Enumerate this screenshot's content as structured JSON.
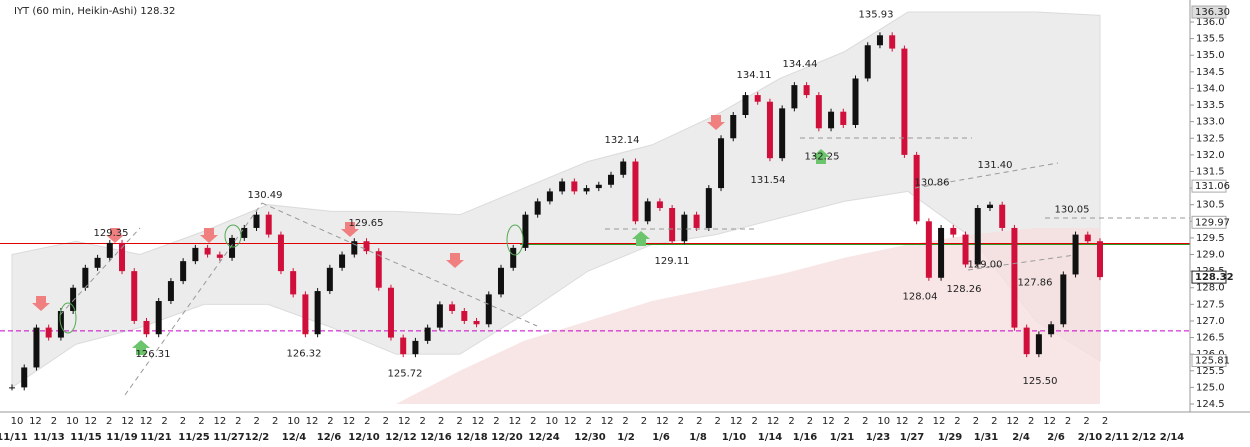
{
  "chart_data": {
    "type": "candlestick",
    "title": "IYT (60 min, Heikin-Ashi) 128.32",
    "series": [
      {
        "name": "IYT",
        "up_color": "#111111",
        "down_color": "#d0103a",
        "values": [
          125.0,
          125.6,
          126.8,
          126.5,
          127.3,
          128.0,
          128.6,
          128.9,
          129.35,
          128.5,
          127.0,
          126.6,
          127.6,
          128.2,
          128.8,
          129.2,
          129.0,
          128.9,
          129.5,
          129.8,
          130.2,
          129.6,
          128.5,
          127.8,
          126.6,
          127.9,
          128.6,
          129.0,
          129.4,
          129.1,
          128.0,
          126.5,
          126.0,
          126.4,
          126.8,
          127.5,
          127.3,
          127.0,
          126.9,
          127.8,
          128.6,
          129.2,
          130.2,
          130.6,
          130.9,
          131.2,
          130.9,
          131.0,
          131.1,
          131.4,
          131.8,
          130.0,
          130.6,
          130.4,
          129.4,
          130.2,
          129.8,
          131.0,
          132.5,
          133.2,
          133.8,
          133.6,
          131.9,
          133.4,
          134.1,
          133.8,
          132.8,
          133.3,
          132.9,
          134.3,
          135.3,
          135.6,
          135.2,
          132.0,
          130.0,
          128.3,
          129.8,
          129.6,
          128.7,
          130.4,
          130.5,
          129.8,
          126.8,
          126.0,
          126.6,
          126.9,
          128.4,
          129.6,
          129.4,
          128.32
        ]
      }
    ],
    "band": {
      "upper": [
        129.0,
        129.4,
        129.0,
        129.7,
        130.5,
        130.3,
        130.3,
        130.2,
        131.0,
        131.8,
        132.3,
        133.2,
        134.3,
        135.1,
        136.3,
        136.3,
        136.3,
        136.2
      ],
      "lower": [
        125.0,
        126.3,
        126.8,
        127.5,
        127.5,
        126.8,
        126.0,
        126.0,
        127.2,
        128.5,
        129.3,
        129.6,
        130.1,
        130.6,
        130.9,
        129.5,
        127.0,
        125.8
      ],
      "color": "#e4e4e4"
    },
    "average_area": {
      "values": [
        null,
        null,
        null,
        null,
        null,
        null,
        124.5,
        125.5,
        126.4,
        127.0,
        127.6,
        128.0,
        128.4,
        128.9,
        129.3,
        129.6,
        129.8,
        129.8
      ],
      "color": "#f6dede"
    },
    "levels": [
      {
        "value": 129.33,
        "color": "#e00000"
      },
      {
        "value": 129.3,
        "color": "#2a9a2a"
      },
      {
        "value": 126.7,
        "color": "#cc00cc"
      }
    ],
    "annotations": [
      129.35,
      126.31,
      130.49,
      126.32,
      129.65,
      125.72,
      132.14,
      129.11,
      134.11,
      131.54,
      134.44,
      132.25,
      135.93,
      130.86,
      128.04,
      128.26,
      {
        "value": 131.4,
        "label": "131.40"
      },
      {
        "value": 129.0,
        "label": "129.00"
      },
      127.86,
      {
        "value": 125.5,
        "label": "125.50"
      },
      130.05
    ],
    "price_labels": [
      {
        "value": 136.3,
        "label": "136.30"
      },
      {
        "value": 131.06,
        "label": "131.06"
      },
      {
        "value": 129.97,
        "label": "129.97"
      },
      {
        "value": 128.32,
        "label": "128.32"
      },
      {
        "value": 125.81,
        "label": "125.81"
      }
    ],
    "ylim": [
      124.5,
      136.0
    ],
    "yticks": [
      124.5,
      {
        "value": 125.0,
        "label": "125.0"
      },
      125.5,
      {
        "value": 126.0,
        "label": "126.0"
      },
      126.5,
      {
        "value": 127.0,
        "label": "127.0"
      },
      127.5,
      {
        "value": 128.0,
        "label": "128.0"
      },
      128.5,
      {
        "value": 129.0,
        "label": "129.0"
      },
      129.5,
      {
        "value": 130.0,
        "label": "130.0"
      },
      130.5,
      {
        "value": 131.0,
        "label": "131.0"
      },
      131.5,
      {
        "value": 132.0,
        "label": "132.0"
      },
      132.5,
      {
        "value": 133.0,
        "label": "133.0"
      },
      133.5,
      {
        "value": 134.0,
        "label": "134.0"
      },
      134.5,
      {
        "value": 135.0,
        "label": "135.0"
      },
      135.5,
      {
        "value": 136.0,
        "label": "136.0"
      }
    ],
    "hour_labels": [
      "10",
      "12",
      "2",
      "10",
      "12",
      "2",
      "12",
      "12",
      "2",
      "2",
      "2",
      "12",
      "2",
      "2",
      "2",
      "10",
      "12",
      "2",
      "12",
      "2",
      "2",
      "12",
      "2",
      "2",
      "2",
      "12",
      "2",
      "12",
      "2",
      "10",
      "12",
      "2",
      "12",
      "2",
      "2",
      "12",
      "2",
      "2",
      "2",
      "12",
      "2",
      "12",
      "2",
      "2",
      "12",
      "2",
      "2",
      "10",
      "12",
      "2",
      "12",
      "2",
      "2",
      "2",
      "12",
      "2",
      "12",
      "2",
      "2",
      "2"
    ],
    "date_labels": [
      "11/11",
      "11/13",
      "11/15",
      "11/19",
      "11/21",
      "11/25",
      "11/27",
      "12/2",
      "12/4",
      "12/6",
      "12/10",
      "12/12",
      "12/16",
      "12/18",
      "12/20",
      "12/24",
      "12/30",
      "1/2",
      "1/6",
      "1/8",
      "1/10",
      "1/14",
      "1/16",
      "1/21",
      "1/23",
      "1/27",
      "1/29",
      "1/31",
      "2/4",
      "2/6",
      "2/10",
      "2/11",
      "2/12",
      "2/14"
    ]
  }
}
